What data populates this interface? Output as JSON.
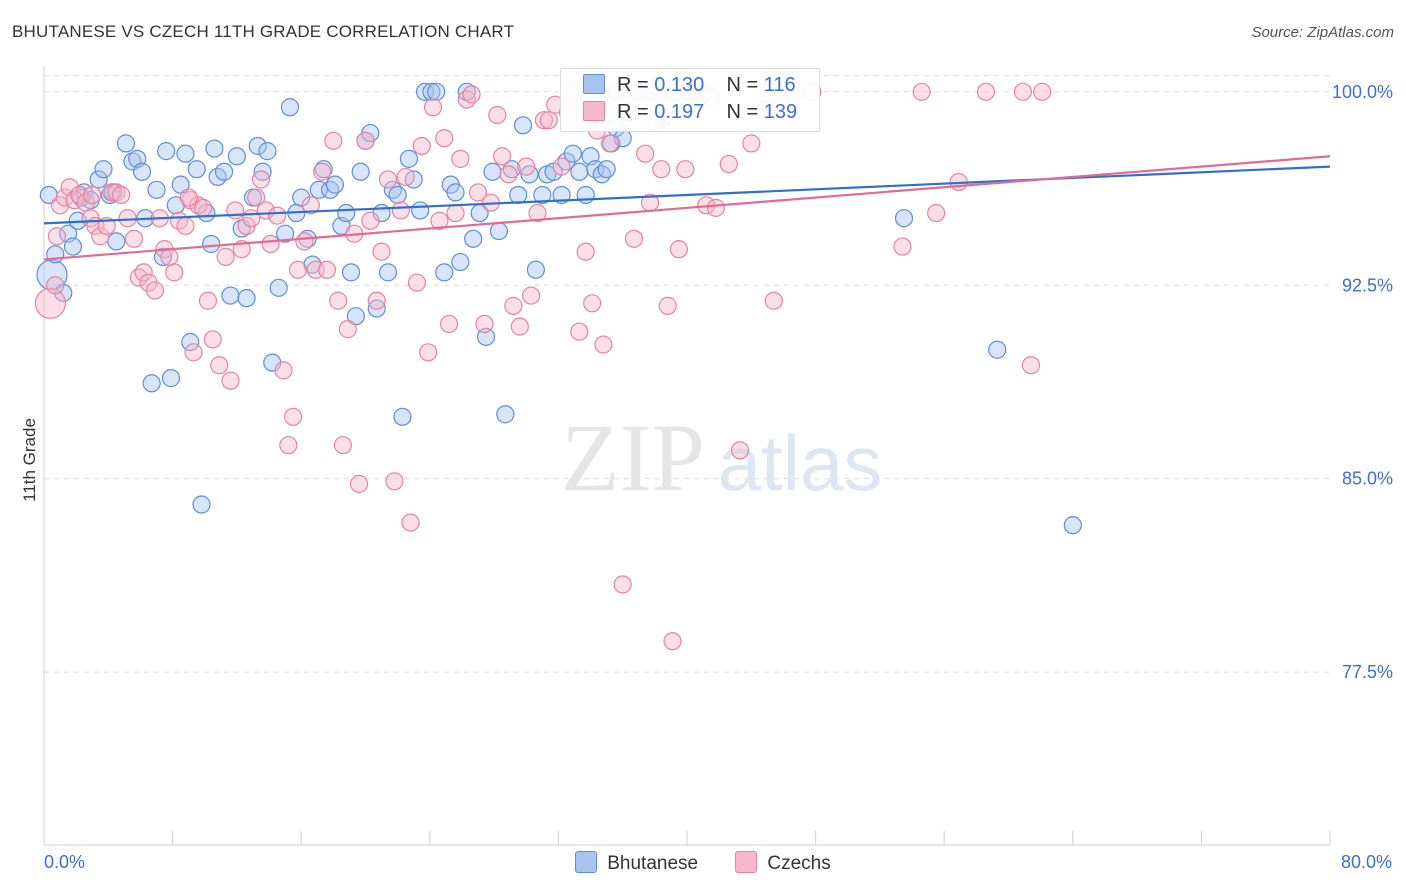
{
  "title": "BHUTANESE VS CZECH 11TH GRADE CORRELATION CHART",
  "source": "Source: ZipAtlas.com",
  "watermark": {
    "zip": "ZIP",
    "atlas": "atlas"
  },
  "stats": [
    {
      "r_label": "R = ",
      "r": "0.130",
      "n_label": "N = ",
      "n": "116",
      "color": "#a8c4ee"
    },
    {
      "r_label": "R = ",
      "r": "0.197",
      "n_label": "N = ",
      "n": "139",
      "color": "#f5b8cc"
    }
  ],
  "legend": [
    {
      "name": "Bhutanese",
      "color": "#a8c4ee"
    },
    {
      "name": "Czechs",
      "color": "#f5b8cc"
    }
  ],
  "chart_data": {
    "type": "scatter",
    "xlabel": "",
    "ylabel": "11th Grade",
    "xlim": [
      0,
      80
    ],
    "ylim": [
      70.8,
      101.0
    ],
    "x_tick_labels": [
      "0.0%",
      "80.0%"
    ],
    "y_ticks": [
      77.5,
      85.0,
      92.5,
      100.0
    ],
    "y_tick_labels": [
      "77.5%",
      "85.0%",
      "92.5%",
      "100.0%"
    ],
    "grid": true,
    "legend_position": "bottom",
    "series": [
      {
        "name": "Bhutanese",
        "color": "#5b8fd8",
        "fill": "#a8c4ee",
        "trend": {
          "x": [
            0,
            80
          ],
          "y": [
            94.9,
            97.1
          ],
          "color": "#2f6fcf"
        },
        "points": [
          [
            0.5,
            92.9
          ],
          [
            0.7,
            93.7
          ],
          [
            1.2,
            92.2
          ],
          [
            1.5,
            94.5
          ],
          [
            1.8,
            94.0
          ],
          [
            2.1,
            95.0
          ],
          [
            2.5,
            96.1
          ],
          [
            2.9,
            95.8
          ],
          [
            3.4,
            96.6
          ],
          [
            3.7,
            97.0
          ],
          [
            4.1,
            96.0
          ],
          [
            4.5,
            94.2
          ],
          [
            5.1,
            98.0
          ],
          [
            5.5,
            97.3
          ],
          [
            5.8,
            97.4
          ],
          [
            6.1,
            96.9
          ],
          [
            6.3,
            95.1
          ],
          [
            6.7,
            88.7
          ],
          [
            7.0,
            96.2
          ],
          [
            7.4,
            93.6
          ],
          [
            7.6,
            97.7
          ],
          [
            7.9,
            88.9
          ],
          [
            8.2,
            95.6
          ],
          [
            8.5,
            96.4
          ],
          [
            8.8,
            97.6
          ],
          [
            9.1,
            90.3
          ],
          [
            9.5,
            97.0
          ],
          [
            9.8,
            84.0
          ],
          [
            10.1,
            95.3
          ],
          [
            10.4,
            94.1
          ],
          [
            10.6,
            97.8
          ],
          [
            10.8,
            96.7
          ],
          [
            11.2,
            96.9
          ],
          [
            11.6,
            92.1
          ],
          [
            12.0,
            97.5
          ],
          [
            12.3,
            94.7
          ],
          [
            12.6,
            92.0
          ],
          [
            13.0,
            95.9
          ],
          [
            13.3,
            97.9
          ],
          [
            13.6,
            96.9
          ],
          [
            13.9,
            97.7
          ],
          [
            14.2,
            89.5
          ],
          [
            14.6,
            92.4
          ],
          [
            15.0,
            94.5
          ],
          [
            15.3,
            99.4
          ],
          [
            15.7,
            95.3
          ],
          [
            16.0,
            95.9
          ],
          [
            16.4,
            94.3
          ],
          [
            16.7,
            93.3
          ],
          [
            17.1,
            96.2
          ],
          [
            17.4,
            97.0
          ],
          [
            17.8,
            96.2
          ],
          [
            18.1,
            96.4
          ],
          [
            18.5,
            94.8
          ],
          [
            18.8,
            95.3
          ],
          [
            19.1,
            93.0
          ],
          [
            19.4,
            91.3
          ],
          [
            19.7,
            96.9
          ],
          [
            20.0,
            98.1
          ],
          [
            20.3,
            98.4
          ],
          [
            20.7,
            91.6
          ],
          [
            21.0,
            95.3
          ],
          [
            21.4,
            93.0
          ],
          [
            21.7,
            96.2
          ],
          [
            22.0,
            96.0
          ],
          [
            22.3,
            87.4
          ],
          [
            22.7,
            97.4
          ],
          [
            23.0,
            96.6
          ],
          [
            23.4,
            95.4
          ],
          [
            23.7,
            100.0
          ],
          [
            24.1,
            100.0
          ],
          [
            24.4,
            100.0
          ],
          [
            24.9,
            93.0
          ],
          [
            25.3,
            96.4
          ],
          [
            25.6,
            96.1
          ],
          [
            25.9,
            93.4
          ],
          [
            26.3,
            100.0
          ],
          [
            26.7,
            94.3
          ],
          [
            27.1,
            95.3
          ],
          [
            27.5,
            90.5
          ],
          [
            27.9,
            96.9
          ],
          [
            28.3,
            94.6
          ],
          [
            28.7,
            87.5
          ],
          [
            29.1,
            97.0
          ],
          [
            29.5,
            96.0
          ],
          [
            29.8,
            98.7
          ],
          [
            30.2,
            96.8
          ],
          [
            30.6,
            93.1
          ],
          [
            31.0,
            96.0
          ],
          [
            31.3,
            96.8
          ],
          [
            31.7,
            96.9
          ],
          [
            32.2,
            96.0
          ],
          [
            32.5,
            97.3
          ],
          [
            32.9,
            97.6
          ],
          [
            33.3,
            96.9
          ],
          [
            33.7,
            96.0
          ],
          [
            34.0,
            97.5
          ],
          [
            34.3,
            97.0
          ],
          [
            34.7,
            96.8
          ],
          [
            35.0,
            97.0
          ],
          [
            35.3,
            98.0
          ],
          [
            35.6,
            98.6
          ],
          [
            36.0,
            98.2
          ],
          [
            36.4,
            99.2
          ],
          [
            36.9,
            100.0
          ],
          [
            37.7,
            100.0
          ],
          [
            38.5,
            99.0
          ],
          [
            39.2,
            100.0
          ],
          [
            40.1,
            100.0
          ],
          [
            41.0,
            99.9
          ],
          [
            53.5,
            95.1
          ],
          [
            59.3,
            90.0
          ],
          [
            64.0,
            83.2
          ],
          [
            0.3,
            96.0
          ],
          [
            2.3,
            95.9
          ],
          [
            4.3,
            96.1
          ]
        ]
      },
      {
        "name": "Czechs",
        "color": "#e8829f",
        "fill": "#f5b8cc",
        "trend": {
          "x": [
            0,
            80
          ],
          "y": [
            93.5,
            97.5
          ],
          "color": "#e46a94"
        },
        "points": [
          [
            0.4,
            91.8
          ],
          [
            0.7,
            92.5
          ],
          [
            1.0,
            95.6
          ],
          [
            1.3,
            95.9
          ],
          [
            1.6,
            96.3
          ],
          [
            1.9,
            95.8
          ],
          [
            2.2,
            96.0
          ],
          [
            2.6,
            95.7
          ],
          [
            2.9,
            95.1
          ],
          [
            3.2,
            94.8
          ],
          [
            3.5,
            94.4
          ],
          [
            3.9,
            94.8
          ],
          [
            4.2,
            96.1
          ],
          [
            4.5,
            96.1
          ],
          [
            4.8,
            96.0
          ],
          [
            5.2,
            95.1
          ],
          [
            5.6,
            94.3
          ],
          [
            5.9,
            92.8
          ],
          [
            6.2,
            93.0
          ],
          [
            6.5,
            92.6
          ],
          [
            6.9,
            92.3
          ],
          [
            7.2,
            95.1
          ],
          [
            7.5,
            93.9
          ],
          [
            7.8,
            93.6
          ],
          [
            8.1,
            93.0
          ],
          [
            8.4,
            95.0
          ],
          [
            8.8,
            94.8
          ],
          [
            9.1,
            95.8
          ],
          [
            9.3,
            89.9
          ],
          [
            9.6,
            95.6
          ],
          [
            9.9,
            95.5
          ],
          [
            10.2,
            91.9
          ],
          [
            10.5,
            90.4
          ],
          [
            10.9,
            89.4
          ],
          [
            11.3,
            93.6
          ],
          [
            11.6,
            88.8
          ],
          [
            11.9,
            95.4
          ],
          [
            12.3,
            93.9
          ],
          [
            12.6,
            94.8
          ],
          [
            12.9,
            95.1
          ],
          [
            13.2,
            95.9
          ],
          [
            13.5,
            96.6
          ],
          [
            13.8,
            95.4
          ],
          [
            14.1,
            94.1
          ],
          [
            14.5,
            95.2
          ],
          [
            14.9,
            89.2
          ],
          [
            15.2,
            86.3
          ],
          [
            15.5,
            87.4
          ],
          [
            15.8,
            93.1
          ],
          [
            16.2,
            94.2
          ],
          [
            16.6,
            95.6
          ],
          [
            16.9,
            93.1
          ],
          [
            17.3,
            96.9
          ],
          [
            17.6,
            93.1
          ],
          [
            18.0,
            98.1
          ],
          [
            18.3,
            91.9
          ],
          [
            18.6,
            86.3
          ],
          [
            18.9,
            90.8
          ],
          [
            19.3,
            94.5
          ],
          [
            19.6,
            84.8
          ],
          [
            20.0,
            98.1
          ],
          [
            20.3,
            95.0
          ],
          [
            20.7,
            91.9
          ],
          [
            21.0,
            93.8
          ],
          [
            21.4,
            96.6
          ],
          [
            21.8,
            84.9
          ],
          [
            22.2,
            95.4
          ],
          [
            22.5,
            96.7
          ],
          [
            22.8,
            83.3
          ],
          [
            23.2,
            92.6
          ],
          [
            23.5,
            97.9
          ],
          [
            23.9,
            89.9
          ],
          [
            24.2,
            99.4
          ],
          [
            24.6,
            95.0
          ],
          [
            24.9,
            98.2
          ],
          [
            25.2,
            91.0
          ],
          [
            25.6,
            95.3
          ],
          [
            25.9,
            97.4
          ],
          [
            26.3,
            99.7
          ],
          [
            26.6,
            99.9
          ],
          [
            27.0,
            96.1
          ],
          [
            27.4,
            91.0
          ],
          [
            27.8,
            95.7
          ],
          [
            28.2,
            99.1
          ],
          [
            28.5,
            97.5
          ],
          [
            28.9,
            96.8
          ],
          [
            29.2,
            91.7
          ],
          [
            29.6,
            90.9
          ],
          [
            30.0,
            97.1
          ],
          [
            30.3,
            92.1
          ],
          [
            30.7,
            95.3
          ],
          [
            31.1,
            98.9
          ],
          [
            31.4,
            98.9
          ],
          [
            31.8,
            99.5
          ],
          [
            32.2,
            97.1
          ],
          [
            32.6,
            99.2
          ],
          [
            33.0,
            100.0
          ],
          [
            33.3,
            90.7
          ],
          [
            33.7,
            93.8
          ],
          [
            34.1,
            91.8
          ],
          [
            34.4,
            98.5
          ],
          [
            34.8,
            90.2
          ],
          [
            35.2,
            98.0
          ],
          [
            35.6,
            100.0
          ],
          [
            36.0,
            80.9
          ],
          [
            36.3,
            99.9
          ],
          [
            36.7,
            94.3
          ],
          [
            37.0,
            100.0
          ],
          [
            37.4,
            97.6
          ],
          [
            37.7,
            95.7
          ],
          [
            38.1,
            98.8
          ],
          [
            38.4,
            97.0
          ],
          [
            38.8,
            91.7
          ],
          [
            39.1,
            78.7
          ],
          [
            39.5,
            93.9
          ],
          [
            39.9,
            97.0
          ],
          [
            40.3,
            100.0
          ],
          [
            41.2,
            95.6
          ],
          [
            41.8,
            95.5
          ],
          [
            42.6,
            97.2
          ],
          [
            43.3,
            86.1
          ],
          [
            44.0,
            98.0
          ],
          [
            44.8,
            99.3
          ],
          [
            45.4,
            91.9
          ],
          [
            46.0,
            100.0
          ],
          [
            47.8,
            100.0
          ],
          [
            53.4,
            94.0
          ],
          [
            54.6,
            100.0
          ],
          [
            55.5,
            95.3
          ],
          [
            56.9,
            96.5
          ],
          [
            58.6,
            100.0
          ],
          [
            60.9,
            100.0
          ],
          [
            61.4,
            89.4
          ],
          [
            62.1,
            100.0
          ],
          [
            0.8,
            94.4
          ],
          [
            3.0,
            96.0
          ],
          [
            41.5,
            99.8
          ],
          [
            45.1,
            99.3
          ],
          [
            9.0,
            95.9
          ]
        ]
      }
    ]
  }
}
